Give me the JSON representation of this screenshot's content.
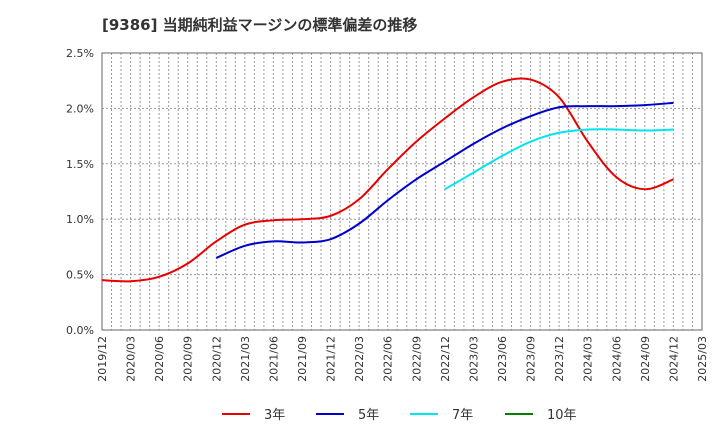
{
  "chart_data": {
    "type": "line",
    "title": "[9386]  当期純利益マージンの標準偏差の推移",
    "xlabel": "",
    "ylabel": "",
    "ylim": [
      0,
      2.5
    ],
    "y_ticks": [
      "0.0%",
      "0.5%",
      "1.0%",
      "1.5%",
      "2.0%",
      "2.5%"
    ],
    "y_tick_values": [
      0,
      0.5,
      1.0,
      1.5,
      2.0,
      2.5
    ],
    "x_ticks": [
      "2019/12",
      "2020/03",
      "2020/06",
      "2020/09",
      "2020/12",
      "2021/03",
      "2021/06",
      "2021/09",
      "2021/12",
      "2022/03",
      "2022/06",
      "2022/09",
      "2022/12",
      "2023/03",
      "2023/06",
      "2023/09",
      "2023/12",
      "2024/03",
      "2024/06",
      "2024/09",
      "2024/12",
      "2025/03"
    ],
    "grid": true,
    "legend_position": "bottom",
    "colors": {
      "3年": "#e60000",
      "5年": "#0000cc",
      "7年": "#00e5ee",
      "10年": "#008000"
    },
    "series": [
      {
        "name": "3年",
        "points": [
          [
            "2019/12",
            0.45
          ],
          [
            "2020/03",
            0.44
          ],
          [
            "2020/06",
            0.48
          ],
          [
            "2020/09",
            0.6
          ],
          [
            "2020/12",
            0.8
          ],
          [
            "2021/03",
            0.95
          ],
          [
            "2021/06",
            0.99
          ],
          [
            "2021/09",
            1.0
          ],
          [
            "2021/12",
            1.03
          ],
          [
            "2022/03",
            1.18
          ],
          [
            "2022/06",
            1.45
          ],
          [
            "2022/09",
            1.7
          ],
          [
            "2022/12",
            1.91
          ],
          [
            "2023/03",
            2.1
          ],
          [
            "2023/06",
            2.24
          ],
          [
            "2023/09",
            2.26
          ],
          [
            "2023/12",
            2.1
          ],
          [
            "2024/03",
            1.7
          ],
          [
            "2024/06",
            1.38
          ],
          [
            "2024/09",
            1.27
          ],
          [
            "2024/12",
            1.36
          ]
        ]
      },
      {
        "name": "5年",
        "points": [
          [
            "2020/12",
            0.65
          ],
          [
            "2021/03",
            0.76
          ],
          [
            "2021/06",
            0.8
          ],
          [
            "2021/09",
            0.79
          ],
          [
            "2021/12",
            0.82
          ],
          [
            "2022/03",
            0.96
          ],
          [
            "2022/06",
            1.17
          ],
          [
            "2022/09",
            1.36
          ],
          [
            "2022/12",
            1.52
          ],
          [
            "2023/03",
            1.68
          ],
          [
            "2023/06",
            1.82
          ],
          [
            "2023/09",
            1.93
          ],
          [
            "2023/12",
            2.01
          ],
          [
            "2024/03",
            2.02
          ],
          [
            "2024/06",
            2.02
          ],
          [
            "2024/09",
            2.03
          ],
          [
            "2024/12",
            2.05
          ]
        ]
      },
      {
        "name": "7年",
        "points": [
          [
            "2022/12",
            1.27
          ],
          [
            "2023/03",
            1.42
          ],
          [
            "2023/06",
            1.57
          ],
          [
            "2023/09",
            1.7
          ],
          [
            "2023/12",
            1.78
          ],
          [
            "2024/03",
            1.81
          ],
          [
            "2024/06",
            1.81
          ],
          [
            "2024/09",
            1.8
          ],
          [
            "2024/12",
            1.81
          ]
        ]
      },
      {
        "name": "10年",
        "points": []
      }
    ]
  }
}
